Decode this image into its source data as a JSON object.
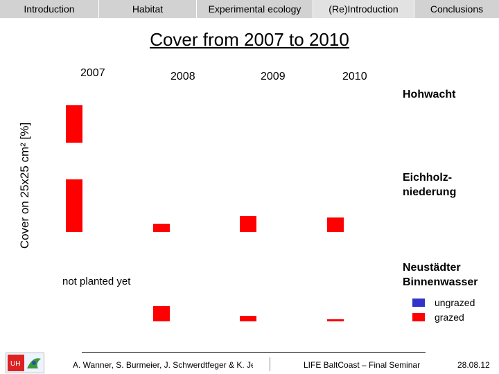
{
  "nav": {
    "tabs": [
      {
        "label": "Introduction"
      },
      {
        "label": "Habitat"
      },
      {
        "label": "Experimental ecology"
      },
      {
        "label": "(Re)Introduction"
      },
      {
        "label": "Conclusions"
      }
    ],
    "active_tab": "(Re)Introduction"
  },
  "slide": {
    "title": "Cover from 2007 to 2010",
    "note": "not planted yet",
    "footer": {
      "authors": "A. Wanner, S. Burmeier, J. Schwerdtfeger & K. Jensen",
      "event": "LIFE BaltCoast – Final Seminar",
      "date": "28.08.12"
    },
    "logo_text": "UH"
  },
  "chart_data": {
    "type": "bar",
    "ylabel": "Cover on 25x25 cm² [%]",
    "categories": [
      "2007",
      "2008",
      "2009",
      "2010"
    ],
    "panels": [
      {
        "site": "Hohwacht",
        "values": [
          100,
          null,
          null,
          null
        ]
      },
      {
        "site": "Eichholz-niederung",
        "values": [
          100,
          16,
          30,
          28
        ]
      },
      {
        "site": "Neustädter Binnenwasser",
        "values": [
          null,
          40,
          15,
          5
        ]
      }
    ],
    "series": [
      {
        "name": "ungrazed",
        "color": "#3333cc"
      },
      {
        "name": "grazed",
        "color": "#ff0000"
      }
    ],
    "colors": {
      "bar": "#ff0000"
    }
  }
}
